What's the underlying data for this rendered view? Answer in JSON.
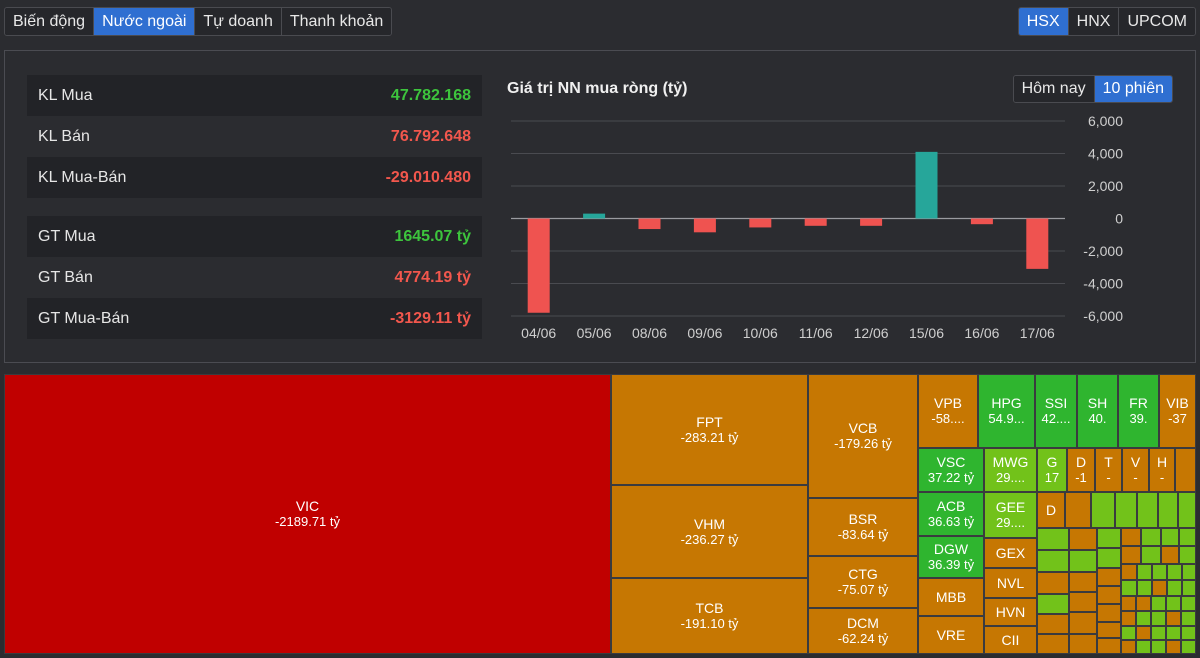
{
  "tabs": [
    "Biến động",
    "Nước ngoài",
    "Tự doanh",
    "Thanh khoản"
  ],
  "exchanges": [
    "HSX",
    "HNX",
    "UPCOM"
  ],
  "stats": {
    "kl_mua": {
      "label": "KL Mua",
      "value": "47.782.168"
    },
    "kl_ban": {
      "label": "KL Bán",
      "value": "76.792.648"
    },
    "kl_net": {
      "label": "KL Mua-Bán",
      "value": "-29.010.480"
    },
    "gt_mua": {
      "label": "GT Mua",
      "value": "1645.07 tỷ"
    },
    "gt_ban": {
      "label": "GT Bán",
      "value": "4774.19 tỷ"
    },
    "gt_net": {
      "label": "GT Mua-Bán",
      "value": "-3129.11 tỷ"
    }
  },
  "chart": {
    "title": "Giá trị NN mua ròng (tỷ)",
    "ranges": [
      "Hôm nay",
      "10 phiên"
    ]
  },
  "colors": {
    "positive": "#26a69a",
    "negative": "#ef5350",
    "accent": "#2f6fd1"
  },
  "chart_data": {
    "type": "bar",
    "title": "Giá trị NN mua ròng (tỷ)",
    "categories": [
      "04/06",
      "05/06",
      "08/06",
      "09/06",
      "10/06",
      "11/06",
      "12/06",
      "15/06",
      "16/06",
      "17/06"
    ],
    "values": [
      -5800,
      300,
      -650,
      -850,
      -550,
      -450,
      -450,
      4100,
      -350,
      -3100
    ],
    "ylim": [
      -6000,
      6000
    ],
    "yticks": [
      "6,000",
      "4,000",
      "2,000",
      "0",
      "-2,000",
      "-4,000",
      "-6,000"
    ],
    "grid": true,
    "legend": "none"
  },
  "treemap": {
    "vic": {
      "name": "VIC",
      "value": "-2189.71 tỷ"
    },
    "fpt": {
      "name": "FPT",
      "value": "-283.21 tỷ"
    },
    "vhm": {
      "name": "VHM",
      "value": "-236.27 tỷ"
    },
    "tcb": {
      "name": "TCB",
      "value": "-191.10 tỷ"
    },
    "vcb": {
      "name": "VCB",
      "value": "-179.26 tỷ"
    },
    "bsr": {
      "name": "BSR",
      "value": "-83.64 tỷ"
    },
    "ctg": {
      "name": "CTG",
      "value": "-75.07 tỷ"
    },
    "dcm": {
      "name": "DCM",
      "value": "-62.24 tỷ"
    },
    "vpb": {
      "name": "VPB",
      "value": "-58...."
    },
    "hpg": {
      "name": "HPG",
      "value": "54.9..."
    },
    "ssi": {
      "name": "SSI",
      "value": "42...."
    },
    "sh": {
      "name": "SH",
      "value": "40."
    },
    "fr": {
      "name": "FR",
      "value": "39."
    },
    "vib": {
      "name": "VIB",
      "value": "-37"
    },
    "vsc": {
      "name": "VSC",
      "value": "37.22 tỷ"
    },
    "mwg": {
      "name": "MWG",
      "value": "29...."
    },
    "g": {
      "name": "G",
      "value": "17"
    },
    "d1": {
      "name": "D",
      "value": "-1"
    },
    "t": {
      "name": "T",
      "value": "-"
    },
    "v": {
      "name": "V",
      "value": "-"
    },
    "h": {
      "name": "H",
      "value": "-"
    },
    "acb": {
      "name": "ACB",
      "value": "36.63 tỷ"
    },
    "gee": {
      "name": "GEE",
      "value": "29...."
    },
    "d2": {
      "name": "D",
      "value": ""
    },
    "dgw": {
      "name": "DGW",
      "value": "36.39 tỷ"
    },
    "gex": {
      "name": "GEX",
      "value": ""
    },
    "mbb": {
      "name": "MBB",
      "value": ""
    },
    "nvl": {
      "name": "NVL",
      "value": ""
    },
    "hvn": {
      "name": "HVN",
      "value": ""
    },
    "vre": {
      "name": "VRE",
      "value": ""
    },
    "cii": {
      "name": "CII",
      "value": ""
    }
  }
}
